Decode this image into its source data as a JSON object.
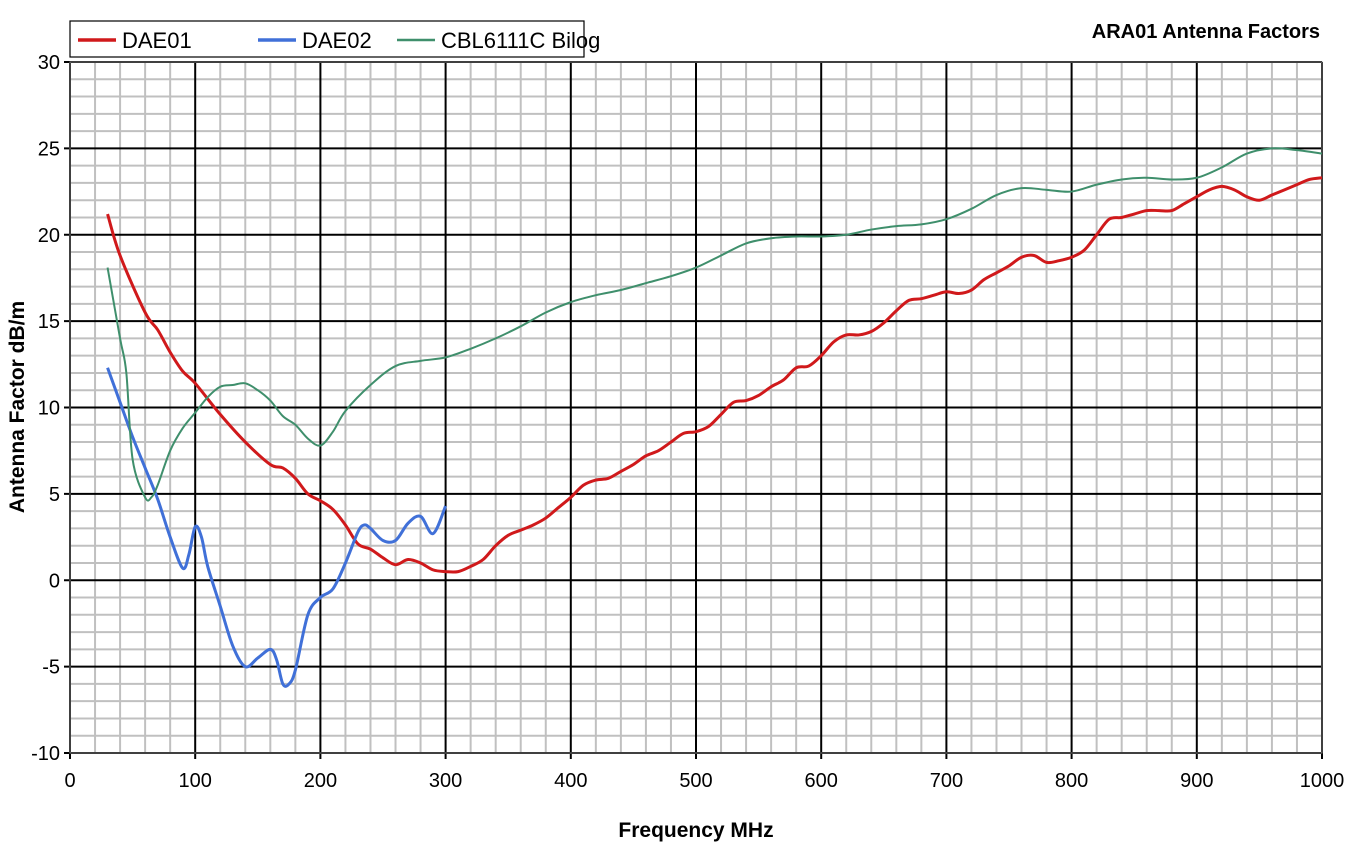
{
  "chart_data": {
    "type": "line",
    "title": "ARA01 Antenna Factors",
    "xlabel": "Frequency MHz",
    "ylabel": "Antenna Factor dB/m",
    "xlim": [
      0,
      1000
    ],
    "ylim": [
      -10,
      30
    ],
    "x_major_step": 100,
    "x_minor_step": 20,
    "y_major_step": 5,
    "y_minor_step": 1,
    "grid": true,
    "legend_position": "top-left",
    "x_ticks": [
      "0",
      "100",
      "200",
      "300",
      "400",
      "500",
      "600",
      "700",
      "800",
      "900",
      "1000"
    ],
    "y_ticks": [
      "-10",
      "-5",
      "0",
      "5",
      "10",
      "15",
      "20",
      "25",
      "30"
    ],
    "series": [
      {
        "name": "DAE01",
        "color": "#d0191b",
        "width": 3,
        "x": [
          30,
          40,
          60,
          70,
          80,
          90,
          100,
          120,
          140,
          160,
          170,
          180,
          190,
          200,
          210,
          220,
          230,
          240,
          250,
          260,
          270,
          280,
          290,
          300,
          310,
          320,
          330,
          340,
          350,
          360,
          370,
          380,
          390,
          400,
          410,
          420,
          430,
          440,
          450,
          460,
          470,
          480,
          490,
          500,
          510,
          520,
          530,
          540,
          550,
          560,
          570,
          580,
          590,
          600,
          610,
          620,
          630,
          640,
          650,
          660,
          670,
          680,
          690,
          700,
          710,
          720,
          730,
          740,
          750,
          760,
          770,
          780,
          790,
          800,
          810,
          820,
          830,
          840,
          850,
          860,
          870,
          880,
          890,
          900,
          910,
          920,
          930,
          940,
          950,
          960,
          970,
          980,
          990,
          1000
        ],
        "y": [
          21.2,
          18.8,
          15.5,
          14.5,
          13.2,
          12.1,
          11.4,
          9.6,
          8.0,
          6.7,
          6.5,
          5.9,
          5.0,
          4.6,
          4.1,
          3.2,
          2.1,
          1.8,
          1.3,
          0.9,
          1.2,
          1.0,
          0.6,
          0.5,
          0.5,
          0.8,
          1.2,
          2.0,
          2.6,
          2.9,
          3.2,
          3.6,
          4.2,
          4.8,
          5.5,
          5.8,
          5.9,
          6.3,
          6.7,
          7.2,
          7.5,
          8.0,
          8.5,
          8.6,
          8.9,
          9.6,
          10.3,
          10.4,
          10.7,
          11.2,
          11.6,
          12.3,
          12.4,
          13.0,
          13.8,
          14.2,
          14.2,
          14.4,
          14.9,
          15.6,
          16.2,
          16.3,
          16.5,
          16.7,
          16.6,
          16.8,
          17.4,
          17.8,
          18.2,
          18.7,
          18.8,
          18.4,
          18.5,
          18.7,
          19.1,
          20.0,
          20.9,
          21.0,
          21.2,
          21.4,
          21.4,
          21.4,
          21.8,
          22.2,
          22.6,
          22.8,
          22.6,
          22.2,
          22.0,
          22.3,
          22.6,
          22.9,
          23.2,
          23.3
        ]
      },
      {
        "name": "DAE02",
        "color": "#4070d8",
        "width": 3,
        "x": [
          30,
          40,
          50,
          60,
          70,
          80,
          90,
          95,
          100,
          105,
          110,
          120,
          130,
          140,
          150,
          160,
          165,
          170,
          175,
          180,
          190,
          200,
          210,
          220,
          230,
          235,
          240,
          250,
          260,
          270,
          280,
          290,
          300
        ],
        "y": [
          12.3,
          10.3,
          8.3,
          6.5,
          4.7,
          2.5,
          0.7,
          1.5,
          3.1,
          2.5,
          0.8,
          -1.5,
          -3.8,
          -5.0,
          -4.5,
          -4.0,
          -4.6,
          -6.0,
          -6.0,
          -5.2,
          -2.0,
          -1.0,
          -0.5,
          1.0,
          2.8,
          3.2,
          3.0,
          2.3,
          2.3,
          3.3,
          3.7,
          2.7,
          4.3
        ]
      },
      {
        "name": "CBL6111C Bilog",
        "color": "#3f8f6c",
        "width": 2,
        "x": [
          30,
          40,
          45,
          50,
          60,
          65,
          70,
          80,
          90,
          100,
          110,
          120,
          130,
          140,
          150,
          160,
          170,
          180,
          190,
          200,
          210,
          220,
          240,
          260,
          280,
          300,
          320,
          340,
          360,
          380,
          400,
          420,
          440,
          460,
          480,
          500,
          520,
          540,
          560,
          580,
          600,
          620,
          640,
          660,
          680,
          700,
          720,
          740,
          760,
          780,
          800,
          820,
          840,
          860,
          880,
          900,
          920,
          940,
          960,
          980,
          1000
        ],
        "y": [
          18.1,
          14.0,
          12.0,
          7.0,
          4.8,
          4.8,
          5.5,
          7.5,
          8.8,
          9.7,
          10.6,
          11.2,
          11.3,
          11.4,
          11.0,
          10.4,
          9.5,
          9.0,
          8.2,
          7.8,
          8.6,
          9.8,
          11.3,
          12.4,
          12.7,
          12.9,
          13.4,
          14.0,
          14.7,
          15.5,
          16.1,
          16.5,
          16.8,
          17.2,
          17.6,
          18.1,
          18.8,
          19.5,
          19.8,
          19.9,
          19.9,
          20.0,
          20.3,
          20.5,
          20.6,
          20.9,
          21.5,
          22.3,
          22.7,
          22.6,
          22.5,
          22.9,
          23.2,
          23.3,
          23.2,
          23.3,
          23.9,
          24.7,
          25.0,
          24.9,
          24.7
        ]
      }
    ]
  }
}
